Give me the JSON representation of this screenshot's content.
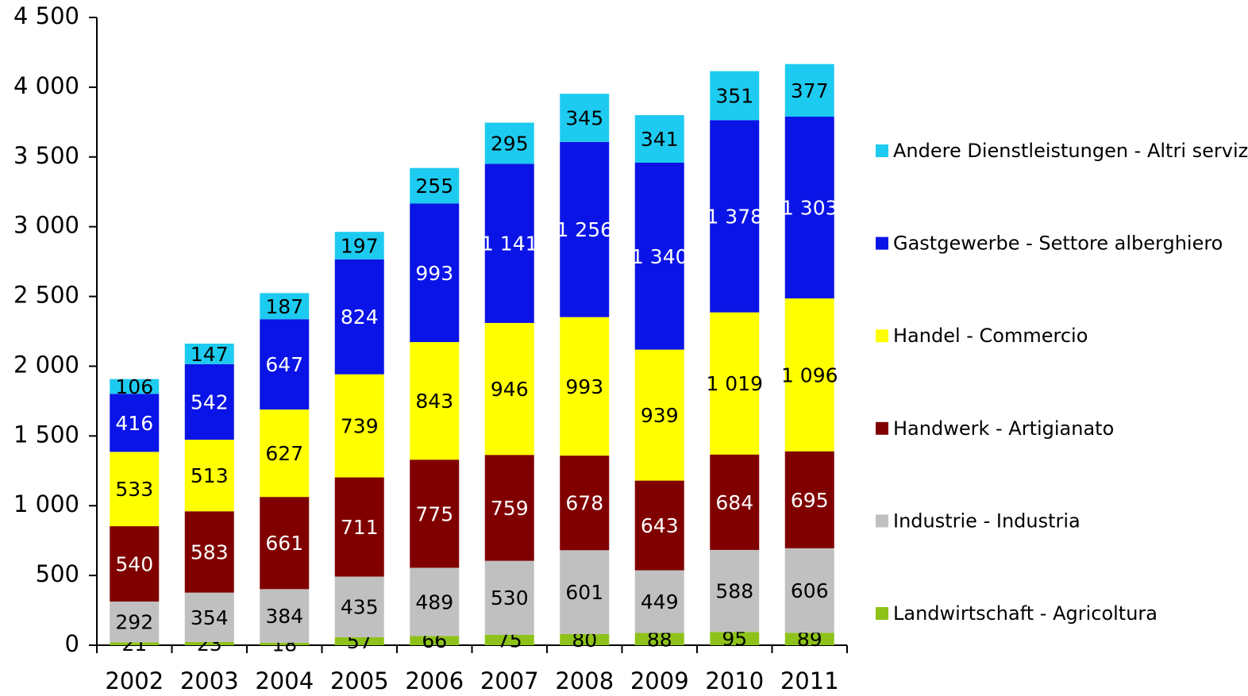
{
  "chart_data": {
    "type": "stacked_bar",
    "categories": [
      "2002",
      "2003",
      "2004",
      "2005",
      "2006",
      "2007",
      "2008",
      "2009",
      "2010",
      "2011"
    ],
    "series": [
      {
        "name": "Landwirtschaft - Agricoltura",
        "color": "#8ec21a",
        "label_color": "#000000",
        "values": [
          21,
          23,
          18,
          57,
          66,
          75,
          80,
          88,
          95,
          89
        ]
      },
      {
        "name": "Industrie - Industria",
        "color": "#c0c0c0",
        "label_color": "#000000",
        "values": [
          292,
          354,
          384,
          435,
          489,
          530,
          601,
          449,
          588,
          606
        ]
      },
      {
        "name": "Handwerk - Artigianato",
        "color": "#800000",
        "label_color": "#ffffff",
        "values": [
          540,
          583,
          661,
          711,
          775,
          759,
          678,
          643,
          684,
          695
        ]
      },
      {
        "name": "Handel - Commercio",
        "color": "#ffff00",
        "label_color": "#000000",
        "values": [
          533,
          513,
          627,
          739,
          843,
          946,
          993,
          939,
          1019,
          1096
        ],
        "value_labels": [
          "533",
          "513",
          "627",
          "739",
          "843",
          "946",
          "993",
          "939",
          "1 019",
          "1 096"
        ]
      },
      {
        "name": "Gastgewerbe - Settore alberghiero",
        "color": "#0a14e6",
        "label_color": "#ffffff",
        "values": [
          416,
          542,
          647,
          824,
          993,
          1141,
          1256,
          1340,
          1378,
          1303
        ],
        "value_labels": [
          "416",
          "542",
          "647",
          "824",
          "993",
          "1 141",
          "1 256",
          "1 340",
          "1 378",
          "1 303"
        ]
      },
      {
        "name": "Andere Dienstleistungen - Altri servizi",
        "color": "#1ecbf0",
        "label_color": "#000000",
        "values": [
          106,
          147,
          187,
          197,
          255,
          295,
          345,
          341,
          351,
          377
        ]
      }
    ],
    "ylim": [
      0,
      4500
    ],
    "yticks": [
      0,
      500,
      {
        "value": 1000,
        "label": "1 000"
      },
      {
        "value": 1500,
        "label": "1 500"
      },
      {
        "value": 2000,
        "label": "2 000"
      },
      {
        "value": 2500,
        "label": "2 500"
      },
      {
        "value": 3000,
        "label": "3 000"
      },
      {
        "value": 3500,
        "label": "3 500"
      },
      {
        "value": 4000,
        "label": "4 000"
      },
      {
        "value": 4500,
        "label": "4 500"
      }
    ],
    "legend": "right"
  }
}
